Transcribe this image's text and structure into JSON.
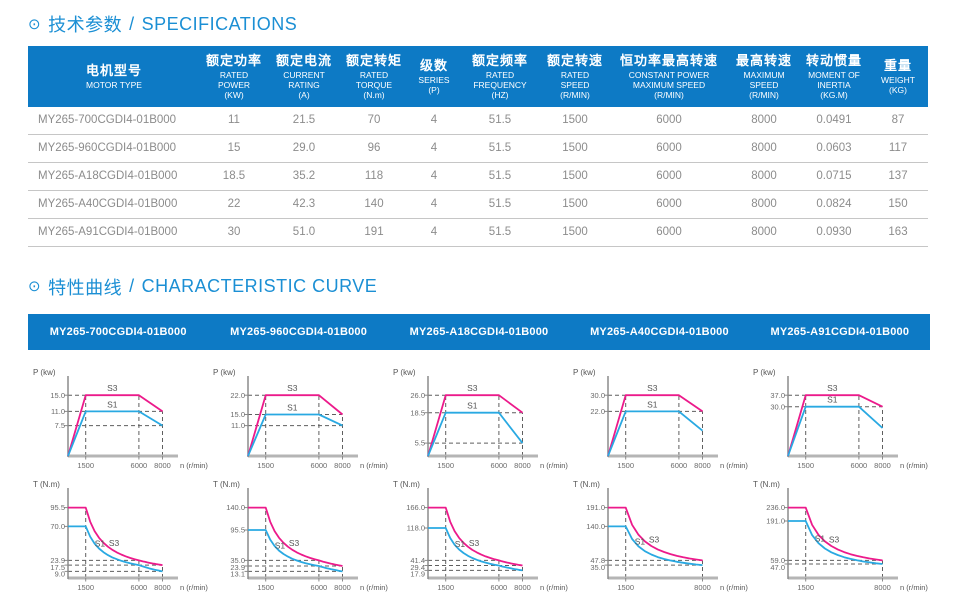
{
  "colors": {
    "accent_blue": "#0d7ac5",
    "title_blue": "#1b8fd4",
    "s3_magenta": "#ec1a8b",
    "s1_cyan": "#29a9e2",
    "axis_gray": "#8a8a8a",
    "baseline_gray": "#b5b5b5",
    "dash_gray": "#5f5f5f",
    "label_gray": "#6a6a6a",
    "row_text_gray": "#8c8c8c"
  },
  "sections": {
    "specifications": {
      "icon": "⊙",
      "title_zh": "技术参数",
      "title_sep": "/",
      "title_en": "SPECIFICATIONS"
    },
    "curves": {
      "icon": "⊙",
      "title_zh": "特性曲线",
      "title_sep": "/",
      "title_en": "CHARACTERISTIC CURVE"
    }
  },
  "table": {
    "columns": [
      {
        "zh": "电机型号",
        "en": "MOTOR TYPE"
      },
      {
        "zh": "额定功率",
        "en": "RATED\nPOWER\n(KW)"
      },
      {
        "zh": "额定电流",
        "en": "CURRENT\nRATING\n(A)"
      },
      {
        "zh": "额定转矩",
        "en": "RATED\nTORQUE\n(N.m)"
      },
      {
        "zh": "级数",
        "en": "SERIES\n(P)"
      },
      {
        "zh": "额定频率",
        "en": "RATED\nFREQUENCY\n(HZ)"
      },
      {
        "zh": "额定转速",
        "en": "RATED\nSPEED\n(R/MIN)"
      },
      {
        "zh": "恒功率最高转速",
        "en": "CONSTANT POWER\nMAXIMUM SPEED\n(R/MIN)"
      },
      {
        "zh": "最高转速",
        "en": "MAXIMUM\nSPEED\n(R/MIN)"
      },
      {
        "zh": "转动惯量",
        "en": "MOMENT OF\nINERTIA\n(KG.M)"
      },
      {
        "zh": "重量",
        "en": "WEIGHT\n(KG)"
      }
    ],
    "rows": [
      [
        "MY265-700CGDI4-01B000",
        "11",
        "21.5",
        "70",
        "4",
        "51.5",
        "1500",
        "6000",
        "8000",
        "0.0491",
        "87"
      ],
      [
        "MY265-960CGDI4-01B000",
        "15",
        "29.0",
        "96",
        "4",
        "51.5",
        "1500",
        "6000",
        "8000",
        "0.0603",
        "117"
      ],
      [
        "MY265-A18CGDI4-01B000",
        "18.5",
        "35.2",
        "118",
        "4",
        "51.5",
        "1500",
        "6000",
        "8000",
        "0.0715",
        "137"
      ],
      [
        "MY265-A40CGDI4-01B000",
        "22",
        "42.3",
        "140",
        "4",
        "51.5",
        "1500",
        "6000",
        "8000",
        "0.0824",
        "150"
      ],
      [
        "MY265-A91CGDI4-01B000",
        "30",
        "51.0",
        "191",
        "4",
        "51.5",
        "1500",
        "6000",
        "8000",
        "0.0930",
        "163"
      ]
    ]
  },
  "curves_bar": {
    "models": [
      "MY265-700CGDI4-01B000",
      "MY265-960CGDI4-01B000",
      "MY265-A18CGDI4-01B000",
      "MY265-A40CGDI4-01B000",
      "MY265-A91CGDI4-01B000"
    ]
  },
  "chart_data": [
    {
      "model": "MY265-700CGDI4-01B000",
      "power": {
        "type": "line",
        "ylabel": "P (kw)",
        "xlabel": "n (r/min)",
        "yticks": [
          "15.0",
          "11.0",
          "7.5"
        ],
        "xticks": [
          "1500",
          "6000",
          "8000"
        ],
        "series": [
          {
            "name": "S3",
            "color": "s3_magenta",
            "points": [
              [
                0,
                0
              ],
              [
                1500,
                15.0
              ],
              [
                6000,
                15.0
              ],
              [
                8000,
                11.0
              ]
            ]
          },
          {
            "name": "S1",
            "color": "s1_cyan",
            "points": [
              [
                0,
                0
              ],
              [
                1500,
                11.0
              ],
              [
                6000,
                11.0
              ],
              [
                8000,
                7.5
              ]
            ]
          }
        ]
      },
      "torque": {
        "type": "line",
        "ylabel": "T (N.m)",
        "xlabel": "n (r/min)",
        "yticks": [
          "95.5",
          "70.0",
          "23.9",
          "17.5",
          "9.0"
        ],
        "xticks": [
          "1500",
          "6000",
          "8000"
        ],
        "series": [
          {
            "name": "S3",
            "color": "s3_magenta",
            "decay": true,
            "points": [
              [
                0,
                95.5
              ],
              [
                1500,
                95.5
              ],
              [
                6000,
                23.9
              ],
              [
                8000,
                17.5
              ]
            ]
          },
          {
            "name": "S1",
            "color": "s1_cyan",
            "decay": true,
            "points": [
              [
                0,
                70.0
              ],
              [
                1500,
                70.0
              ],
              [
                6000,
                17.5
              ],
              [
                8000,
                9.0
              ]
            ]
          }
        ]
      }
    },
    {
      "model": "MY265-960CGDI4-01B000",
      "power": {
        "type": "line",
        "ylabel": "P (kw)",
        "xlabel": "n (r/min)",
        "yticks": [
          "22.0",
          "15.0",
          "11.0"
        ],
        "xticks": [
          "1500",
          "6000",
          "8000"
        ],
        "series": [
          {
            "name": "S3",
            "color": "s3_magenta",
            "points": [
              [
                0,
                0
              ],
              [
                1500,
                22.0
              ],
              [
                6000,
                22.0
              ],
              [
                8000,
                15.0
              ]
            ]
          },
          {
            "name": "S1",
            "color": "s1_cyan",
            "points": [
              [
                0,
                0
              ],
              [
                1500,
                15.0
              ],
              [
                6000,
                15.0
              ],
              [
                8000,
                11.0
              ]
            ]
          }
        ]
      },
      "torque": {
        "type": "line",
        "ylabel": "T (N.m)",
        "xlabel": "n (r/min)",
        "yticks": [
          "140.0",
          "95.5",
          "35.0",
          "23.9",
          "13.1"
        ],
        "xticks": [
          "1500",
          "6000",
          "8000"
        ],
        "series": [
          {
            "name": "S3",
            "color": "s3_magenta",
            "decay": true,
            "points": [
              [
                0,
                140.0
              ],
              [
                1500,
                140.0
              ],
              [
                6000,
                35.0
              ],
              [
                8000,
                23.9
              ]
            ]
          },
          {
            "name": "S1",
            "color": "s1_cyan",
            "decay": true,
            "points": [
              [
                0,
                95.5
              ],
              [
                1500,
                95.5
              ],
              [
                6000,
                23.9
              ],
              [
                8000,
                13.1
              ]
            ]
          }
        ]
      }
    },
    {
      "model": "MY265-A18CGDI4-01B000",
      "power": {
        "type": "line",
        "ylabel": "P (kw)",
        "xlabel": "n (r/min)",
        "yticks": [
          "26.0",
          "18.5",
          "5.5"
        ],
        "xticks": [
          "1500",
          "6000",
          "8000"
        ],
        "series": [
          {
            "name": "S3",
            "color": "s3_magenta",
            "points": [
              [
                0,
                0
              ],
              [
                1500,
                26.0
              ],
              [
                6000,
                26.0
              ],
              [
                8000,
                18.5
              ]
            ]
          },
          {
            "name": "S1",
            "color": "s1_cyan",
            "points": [
              [
                0,
                0
              ],
              [
                1500,
                18.5
              ],
              [
                6000,
                18.5
              ],
              [
                8000,
                5.5
              ]
            ]
          }
        ]
      },
      "torque": {
        "type": "line",
        "ylabel": "T (N.m)",
        "xlabel": "n (r/min)",
        "yticks": [
          "166.0",
          "118.0",
          "41.4",
          "29.4",
          "17.9"
        ],
        "xticks": [
          "1500",
          "6000",
          "8000"
        ],
        "series": [
          {
            "name": "S3",
            "color": "s3_magenta",
            "decay": true,
            "points": [
              [
                0,
                166.0
              ],
              [
                1500,
                166.0
              ],
              [
                6000,
                41.4
              ],
              [
                8000,
                29.4
              ]
            ]
          },
          {
            "name": "S1",
            "color": "s1_cyan",
            "decay": true,
            "points": [
              [
                0,
                118.0
              ],
              [
                1500,
                118.0
              ],
              [
                6000,
                29.4
              ],
              [
                8000,
                17.9
              ]
            ]
          }
        ]
      }
    },
    {
      "model": "MY265-A40CGDI4-01B000",
      "power": {
        "type": "line",
        "ylabel": "P (kw)",
        "xlabel": "n (r/min)",
        "yticks": [
          "30.0",
          "22.0"
        ],
        "xticks": [
          "1500",
          "6000",
          "8000"
        ],
        "series": [
          {
            "name": "S3",
            "color": "s3_magenta",
            "points": [
              [
                0,
                0
              ],
              [
                1500,
                30.0
              ],
              [
                6000,
                30.0
              ],
              [
                8000,
                22.0
              ]
            ]
          },
          {
            "name": "S1",
            "color": "s1_cyan",
            "points": [
              [
                0,
                0
              ],
              [
                1500,
                22.0
              ],
              [
                6000,
                22.0
              ],
              [
                8000,
                12.5
              ]
            ]
          }
        ]
      },
      "torque": {
        "type": "line",
        "ylabel": "T (N.m)",
        "xlabel": "n (r/min)",
        "yticks": [
          "191.0",
          "140.0",
          "47.8",
          "35.0"
        ],
        "xticks": [
          "1500",
          "8000"
        ],
        "series": [
          {
            "name": "S3",
            "color": "s3_magenta",
            "decay": true,
            "points": [
              [
                0,
                191.0
              ],
              [
                1500,
                191.0
              ],
              [
                8000,
                47.8
              ]
            ]
          },
          {
            "name": "S1",
            "color": "s1_cyan",
            "decay": true,
            "points": [
              [
                0,
                140.0
              ],
              [
                1500,
                140.0
              ],
              [
                8000,
                35.0
              ]
            ]
          }
        ]
      }
    },
    {
      "model": "MY265-A91CGDI4-01B000",
      "power": {
        "type": "line",
        "ylabel": "P (kw)",
        "xlabel": "n (r/min)",
        "yticks": [
          "37.0",
          "30.0"
        ],
        "xticks": [
          "1500",
          "6000",
          "8000"
        ],
        "series": [
          {
            "name": "S3",
            "color": "s3_magenta",
            "points": [
              [
                0,
                0
              ],
              [
                1500,
                37.0
              ],
              [
                6000,
                37.0
              ],
              [
                8000,
                30.0
              ]
            ]
          },
          {
            "name": "S1",
            "color": "s1_cyan",
            "points": [
              [
                0,
                0
              ],
              [
                1500,
                30.0
              ],
              [
                6000,
                30.0
              ],
              [
                8000,
                17.0
              ]
            ]
          }
        ]
      },
      "torque": {
        "type": "line",
        "ylabel": "T (N.m)",
        "xlabel": "n (r/min)",
        "yticks": [
          "236.0",
          "191.0",
          "59.0",
          "47.0"
        ],
        "xticks": [
          "1500",
          "8000"
        ],
        "series": [
          {
            "name": "S3",
            "color": "s3_magenta",
            "decay": true,
            "points": [
              [
                0,
                236.0
              ],
              [
                1500,
                236.0
              ],
              [
                8000,
                59.0
              ]
            ]
          },
          {
            "name": "S1",
            "color": "s1_cyan",
            "decay": true,
            "points": [
              [
                0,
                191.0
              ],
              [
                1500,
                191.0
              ],
              [
                8000,
                47.0
              ]
            ]
          }
        ]
      }
    }
  ]
}
